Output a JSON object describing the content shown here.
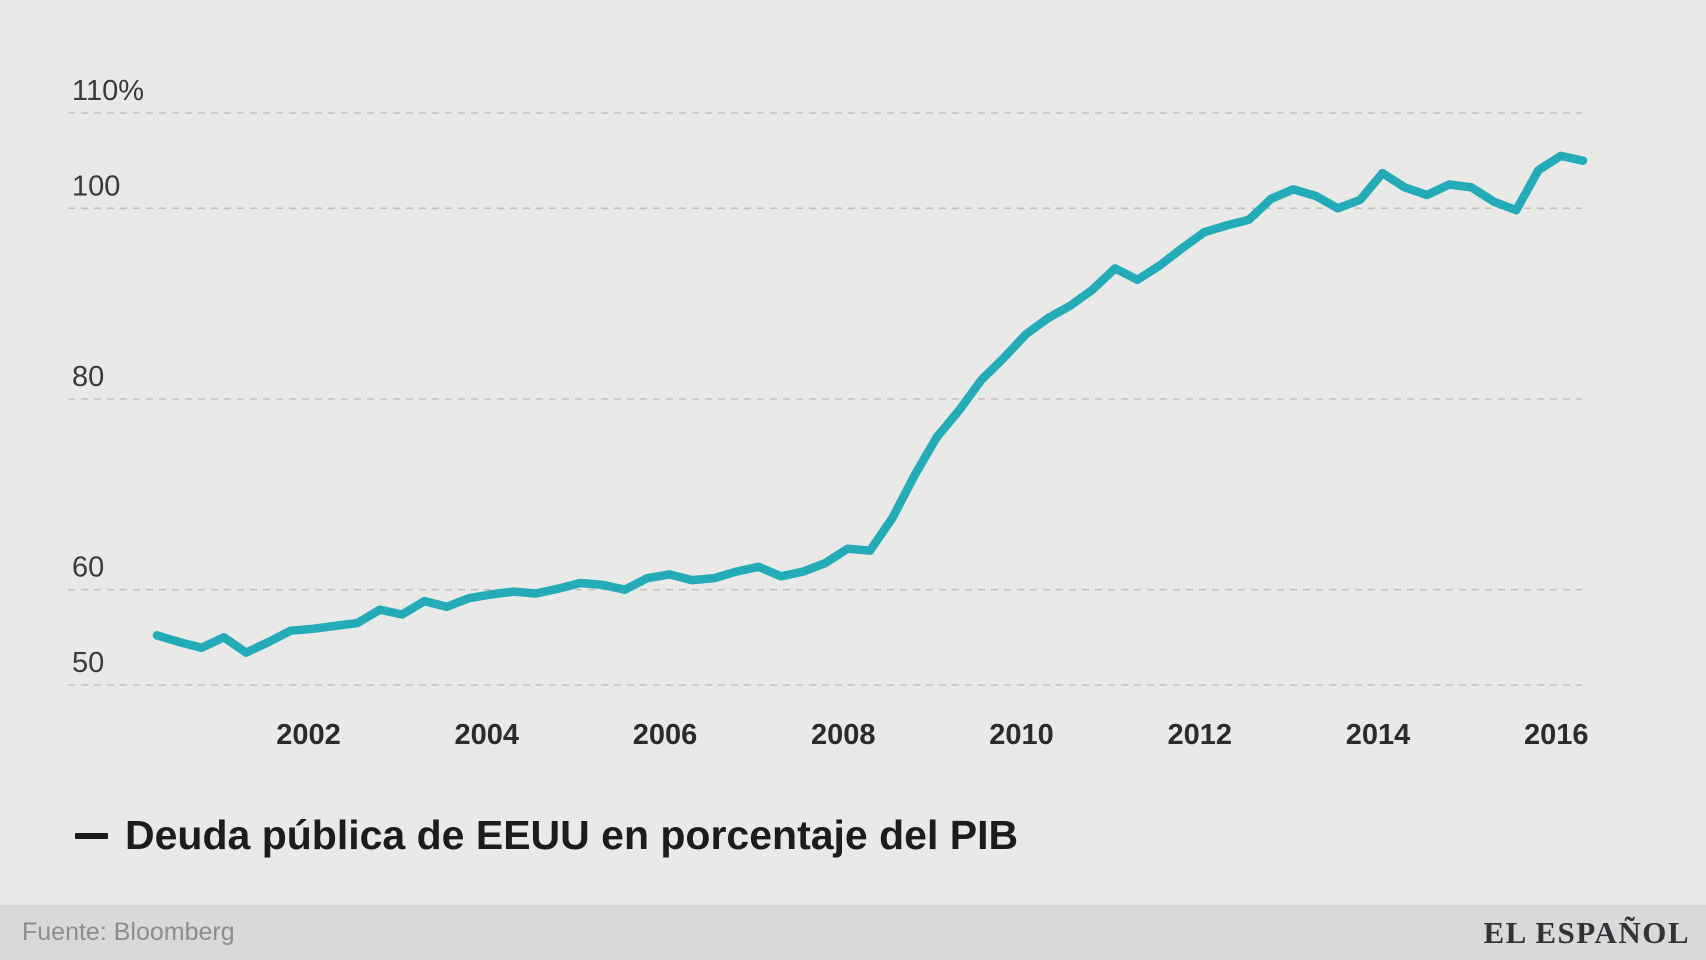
{
  "page": {
    "background": "#e9e9e7",
    "footer_background": "#d9d9d7"
  },
  "chart_data": {
    "type": "line",
    "title": "",
    "grid": "dashed-horizontal",
    "legend_position": "bottom-left",
    "gridline_color": "#c4c2c0",
    "axis_text_color": "#3a3a3a",
    "year_text_color": "#2b2b2b",
    "ylim": [
      50,
      110
    ],
    "xlim": [
      2000.3,
      2016.3
    ],
    "y_ticks": [
      {
        "value": 110,
        "label": "110%"
      },
      {
        "value": 100,
        "label": "100"
      },
      {
        "value": 80,
        "label": "80"
      },
      {
        "value": 60,
        "label": "60"
      },
      {
        "value": 50,
        "label": "50"
      }
    ],
    "x_ticks": [
      {
        "year": 2002,
        "label": "2002"
      },
      {
        "year": 2004,
        "label": "2004"
      },
      {
        "year": 2006,
        "label": "2006"
      },
      {
        "year": 2008,
        "label": "2008"
      },
      {
        "year": 2010,
        "label": "2010"
      },
      {
        "year": 2012,
        "label": "2012"
      },
      {
        "year": 2014,
        "label": "2014"
      },
      {
        "year": 2016,
        "label": "2016"
      }
    ],
    "series": [
      {
        "name": "Deuda pública de EEUU en porcentaje del PIB",
        "color": "#23abb8",
        "unit": "% del PIB",
        "frequency": "quarterly",
        "start_year": 2000.3,
        "step_years": 0.25,
        "values": [
          55.2,
          54.5,
          53.9,
          55.0,
          53.4,
          54.5,
          55.7,
          55.9,
          56.2,
          56.5,
          57.9,
          57.4,
          58.8,
          58.2,
          59.1,
          59.5,
          59.8,
          59.6,
          60.1,
          60.7,
          60.5,
          60.0,
          61.2,
          61.6,
          61.0,
          61.2,
          61.9,
          62.4,
          61.4,
          61.9,
          62.8,
          64.3,
          64.1,
          67.5,
          72.0,
          76.0,
          78.8,
          82.0,
          84.3,
          86.8,
          88.5,
          89.8,
          91.5,
          93.7,
          92.5,
          94.0,
          95.8,
          97.5,
          98.2,
          98.8,
          101.0,
          102.0,
          101.3,
          100.0,
          100.9,
          103.7,
          102.2,
          101.4,
          102.5,
          102.2,
          100.7,
          99.8,
          104.0,
          105.5,
          105.0
        ]
      }
    ]
  },
  "legend": {
    "label": "Deuda pública de EEUU en porcentaje del PIB",
    "dash_color": "#1c1c1a"
  },
  "footer": {
    "source": "Fuente: Bloomberg",
    "brand": "EL ESPAÑOL"
  }
}
